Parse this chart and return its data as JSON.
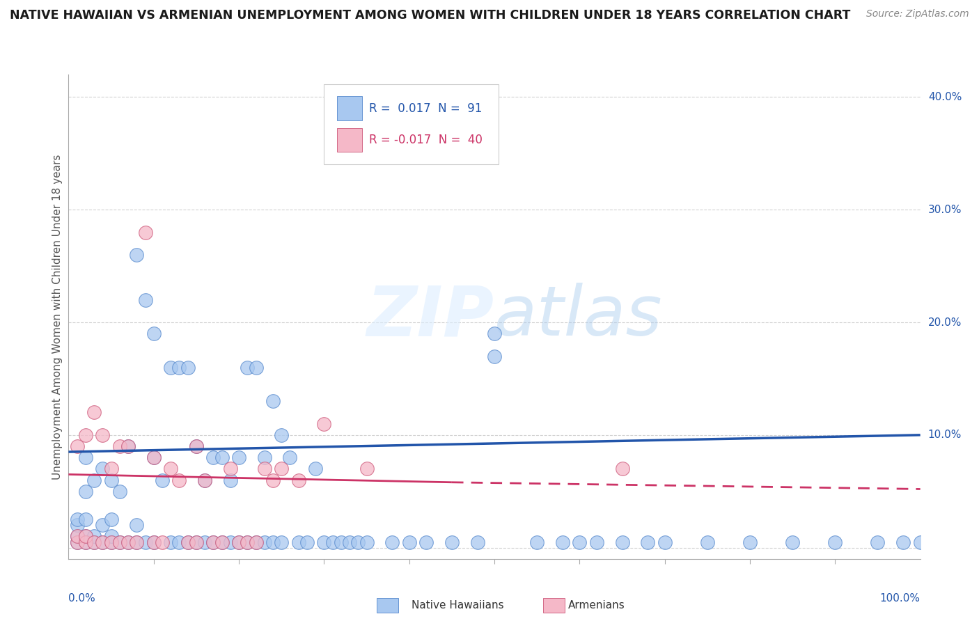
{
  "title": "NATIVE HAWAIIAN VS ARMENIAN UNEMPLOYMENT AMONG WOMEN WITH CHILDREN UNDER 18 YEARS CORRELATION CHART",
  "source": "Source: ZipAtlas.com",
  "ylabel": "Unemployment Among Women with Children Under 18 years",
  "xlim": [
    0,
    1.0
  ],
  "ylim": [
    -0.01,
    0.42
  ],
  "yticks": [
    0.0,
    0.1,
    0.2,
    0.3,
    0.4
  ],
  "ytick_labels": [
    "",
    "10.0%",
    "20.0%",
    "30.0%",
    "40.0%"
  ],
  "legend_blue_r": "0.017",
  "legend_blue_n": "91",
  "legend_pink_r": "-0.017",
  "legend_pink_n": "40",
  "blue_color": "#A8C8F0",
  "pink_color": "#F5B8C8",
  "blue_edge_color": "#5588CC",
  "pink_edge_color": "#CC5577",
  "trend_blue_color": "#2255AA",
  "trend_pink_color": "#CC3366",
  "watermark": "ZIPatlas",
  "blue_scatter_x": [
    0.01,
    0.01,
    0.01,
    0.01,
    0.02,
    0.02,
    0.02,
    0.02,
    0.02,
    0.03,
    0.03,
    0.03,
    0.04,
    0.04,
    0.04,
    0.05,
    0.05,
    0.05,
    0.05,
    0.06,
    0.06,
    0.07,
    0.07,
    0.08,
    0.08,
    0.08,
    0.09,
    0.09,
    0.1,
    0.1,
    0.1,
    0.11,
    0.12,
    0.12,
    0.13,
    0.13,
    0.14,
    0.14,
    0.15,
    0.15,
    0.16,
    0.16,
    0.17,
    0.17,
    0.18,
    0.18,
    0.19,
    0.19,
    0.2,
    0.2,
    0.21,
    0.21,
    0.22,
    0.22,
    0.23,
    0.23,
    0.24,
    0.24,
    0.25,
    0.25,
    0.26,
    0.27,
    0.28,
    0.29,
    0.3,
    0.31,
    0.32,
    0.33,
    0.34,
    0.35,
    0.38,
    0.4,
    0.42,
    0.45,
    0.48,
    0.5,
    0.55,
    0.58,
    0.6,
    0.62,
    0.65,
    0.68,
    0.7,
    0.75,
    0.8,
    0.85,
    0.9,
    0.95,
    0.98,
    1.0,
    0.5
  ],
  "blue_scatter_y": [
    0.005,
    0.01,
    0.02,
    0.025,
    0.005,
    0.01,
    0.025,
    0.05,
    0.08,
    0.005,
    0.01,
    0.06,
    0.005,
    0.02,
    0.07,
    0.005,
    0.01,
    0.025,
    0.06,
    0.005,
    0.05,
    0.005,
    0.09,
    0.005,
    0.02,
    0.26,
    0.005,
    0.22,
    0.005,
    0.08,
    0.19,
    0.06,
    0.005,
    0.16,
    0.005,
    0.16,
    0.005,
    0.16,
    0.005,
    0.09,
    0.005,
    0.06,
    0.005,
    0.08,
    0.005,
    0.08,
    0.005,
    0.06,
    0.005,
    0.08,
    0.005,
    0.16,
    0.005,
    0.16,
    0.005,
    0.08,
    0.005,
    0.13,
    0.005,
    0.1,
    0.08,
    0.005,
    0.005,
    0.07,
    0.005,
    0.005,
    0.005,
    0.005,
    0.005,
    0.005,
    0.005,
    0.005,
    0.005,
    0.005,
    0.005,
    0.19,
    0.005,
    0.005,
    0.005,
    0.005,
    0.005,
    0.005,
    0.005,
    0.005,
    0.005,
    0.005,
    0.005,
    0.005,
    0.005,
    0.005,
    0.17
  ],
  "pink_scatter_x": [
    0.01,
    0.01,
    0.01,
    0.02,
    0.02,
    0.02,
    0.03,
    0.03,
    0.04,
    0.04,
    0.05,
    0.05,
    0.06,
    0.06,
    0.07,
    0.07,
    0.08,
    0.09,
    0.1,
    0.1,
    0.11,
    0.12,
    0.13,
    0.14,
    0.15,
    0.15,
    0.16,
    0.17,
    0.18,
    0.19,
    0.2,
    0.21,
    0.22,
    0.23,
    0.24,
    0.25,
    0.27,
    0.3,
    0.35,
    0.65
  ],
  "pink_scatter_y": [
    0.005,
    0.01,
    0.09,
    0.005,
    0.01,
    0.1,
    0.005,
    0.12,
    0.005,
    0.1,
    0.005,
    0.07,
    0.005,
    0.09,
    0.005,
    0.09,
    0.005,
    0.28,
    0.005,
    0.08,
    0.005,
    0.07,
    0.06,
    0.005,
    0.005,
    0.09,
    0.06,
    0.005,
    0.005,
    0.07,
    0.005,
    0.005,
    0.005,
    0.07,
    0.06,
    0.07,
    0.06,
    0.11,
    0.07,
    0.07
  ],
  "grid_color": "#CCCCCC",
  "background_color": "#FFFFFF"
}
